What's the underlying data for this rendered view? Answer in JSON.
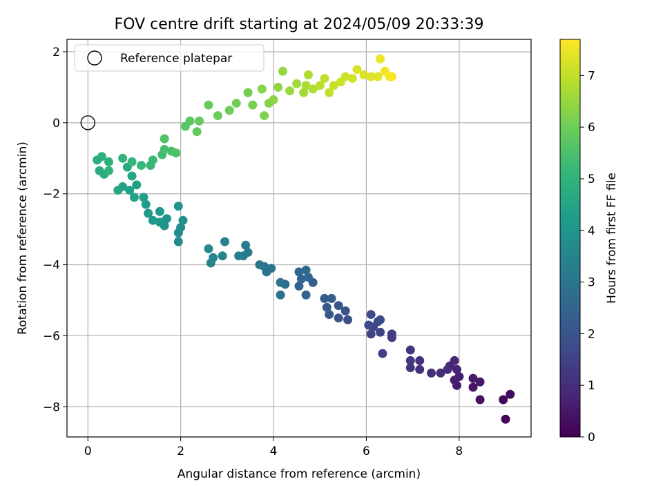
{
  "chart_data": {
    "type": "scatter",
    "title": "FOV centre drift starting at 2024/05/09 20:33:39",
    "xlabel": "Angular distance from reference (arcmin)",
    "ylabel": "Rotation from reference (arcmin)",
    "xlim": [
      -0.45,
      9.55
    ],
    "ylim": [
      -8.85,
      2.35
    ],
    "xticks": [
      0,
      2,
      4,
      6,
      8
    ],
    "xtick_labels": [
      "0",
      "2",
      "4",
      "6",
      "8"
    ],
    "yticks": [
      2,
      0,
      -2,
      -4,
      -6,
      -8
    ],
    "ytick_labels": [
      "2",
      "0",
      "−2",
      "−4",
      "−6",
      "−8"
    ],
    "grid": true,
    "legend": {
      "position": "top-left",
      "entries": [
        "Reference platepar"
      ]
    },
    "reference_point": {
      "x": 0,
      "y": 0,
      "label": "Reference platepar",
      "marker": "open-circle"
    },
    "colorbar": {
      "label": "Hours from first FF file",
      "colormap": "viridis",
      "range": [
        0,
        7.7
      ],
      "ticks": [
        0,
        1,
        2,
        3,
        4,
        5,
        6,
        7
      ],
      "tick_labels": [
        "0",
        "1",
        "2",
        "3",
        "4",
        "5",
        "6",
        "7"
      ]
    },
    "points": [
      {
        "x": 9.0,
        "y": -8.35,
        "h": 0.05
      },
      {
        "x": 8.95,
        "y": -7.8,
        "h": 0.15
      },
      {
        "x": 9.1,
        "y": -7.65,
        "h": 0.25
      },
      {
        "x": 8.45,
        "y": -7.8,
        "h": 0.35
      },
      {
        "x": 8.3,
        "y": -7.45,
        "h": 0.45
      },
      {
        "x": 8.45,
        "y": -7.3,
        "h": 0.5
      },
      {
        "x": 8.3,
        "y": -7.2,
        "h": 0.55
      },
      {
        "x": 7.95,
        "y": -7.4,
        "h": 0.6
      },
      {
        "x": 7.9,
        "y": -7.25,
        "h": 0.65
      },
      {
        "x": 8.0,
        "y": -7.15,
        "h": 0.7
      },
      {
        "x": 7.95,
        "y": -6.95,
        "h": 0.75
      },
      {
        "x": 7.8,
        "y": -6.85,
        "h": 0.8
      },
      {
        "x": 7.9,
        "y": -6.7,
        "h": 0.85
      },
      {
        "x": 7.75,
        "y": -6.95,
        "h": 0.9
      },
      {
        "x": 7.6,
        "y": -7.05,
        "h": 0.95
      },
      {
        "x": 7.4,
        "y": -7.05,
        "h": 1.0
      },
      {
        "x": 7.15,
        "y": -6.7,
        "h": 1.05
      },
      {
        "x": 7.15,
        "y": -6.95,
        "h": 1.1
      },
      {
        "x": 6.95,
        "y": -6.9,
        "h": 1.15
      },
      {
        "x": 6.95,
        "y": -6.7,
        "h": 1.2
      },
      {
        "x": 6.95,
        "y": -6.4,
        "h": 1.25
      },
      {
        "x": 6.55,
        "y": -6.05,
        "h": 1.35
      },
      {
        "x": 6.55,
        "y": -5.95,
        "h": 1.4
      },
      {
        "x": 6.35,
        "y": -6.5,
        "h": 1.45
      },
      {
        "x": 6.3,
        "y": -5.9,
        "h": 1.5
      },
      {
        "x": 6.1,
        "y": -5.95,
        "h": 1.55
      },
      {
        "x": 6.15,
        "y": -5.75,
        "h": 1.6
      },
      {
        "x": 6.05,
        "y": -5.7,
        "h": 1.65
      },
      {
        "x": 6.25,
        "y": -5.6,
        "h": 1.7
      },
      {
        "x": 6.1,
        "y": -5.4,
        "h": 1.75
      },
      {
        "x": 6.3,
        "y": -5.55,
        "h": 1.8
      },
      {
        "x": 5.6,
        "y": -5.55,
        "h": 1.9
      },
      {
        "x": 5.55,
        "y": -5.3,
        "h": 1.95
      },
      {
        "x": 5.4,
        "y": -5.5,
        "h": 2.0
      },
      {
        "x": 5.4,
        "y": -5.15,
        "h": 2.05
      },
      {
        "x": 5.2,
        "y": -5.4,
        "h": 2.1
      },
      {
        "x": 5.15,
        "y": -5.2,
        "h": 2.15
      },
      {
        "x": 5.1,
        "y": -4.95,
        "h": 2.2
      },
      {
        "x": 5.25,
        "y": -4.95,
        "h": 2.25
      },
      {
        "x": 4.85,
        "y": -4.5,
        "h": 2.35
      },
      {
        "x": 4.7,
        "y": -4.85,
        "h": 2.4
      },
      {
        "x": 4.55,
        "y": -4.6,
        "h": 2.45
      },
      {
        "x": 4.6,
        "y": -4.4,
        "h": 2.5
      },
      {
        "x": 4.75,
        "y": -4.35,
        "h": 2.55
      },
      {
        "x": 4.55,
        "y": -4.2,
        "h": 2.6
      },
      {
        "x": 4.7,
        "y": -4.15,
        "h": 2.65
      },
      {
        "x": 4.25,
        "y": -4.55,
        "h": 2.75
      },
      {
        "x": 4.15,
        "y": -4.85,
        "h": 2.8
      },
      {
        "x": 4.15,
        "y": -4.5,
        "h": 2.85
      },
      {
        "x": 3.95,
        "y": -4.1,
        "h": 2.9
      },
      {
        "x": 3.85,
        "y": -4.2,
        "h": 2.95
      },
      {
        "x": 3.8,
        "y": -4.05,
        "h": 3.0
      },
      {
        "x": 3.7,
        "y": -4.0,
        "h": 3.05
      },
      {
        "x": 3.45,
        "y": -3.65,
        "h": 3.15
      },
      {
        "x": 3.4,
        "y": -3.45,
        "h": 3.2
      },
      {
        "x": 3.35,
        "y": -3.75,
        "h": 3.25
      },
      {
        "x": 3.25,
        "y": -3.75,
        "h": 3.3
      },
      {
        "x": 2.95,
        "y": -3.35,
        "h": 3.4
      },
      {
        "x": 2.9,
        "y": -3.75,
        "h": 3.45
      },
      {
        "x": 2.7,
        "y": -3.8,
        "h": 3.5
      },
      {
        "x": 2.65,
        "y": -3.95,
        "h": 3.55
      },
      {
        "x": 2.6,
        "y": -3.55,
        "h": 3.6
      },
      {
        "x": 1.95,
        "y": -3.35,
        "h": 3.7
      },
      {
        "x": 1.95,
        "y": -3.1,
        "h": 3.75
      },
      {
        "x": 2.0,
        "y": -2.95,
        "h": 3.8
      },
      {
        "x": 2.05,
        "y": -2.75,
        "h": 3.85
      },
      {
        "x": 1.95,
        "y": -2.35,
        "h": 3.9
      },
      {
        "x": 1.65,
        "y": -2.9,
        "h": 3.95
      },
      {
        "x": 1.7,
        "y": -2.7,
        "h": 4.0
      },
      {
        "x": 1.55,
        "y": -2.8,
        "h": 4.05
      },
      {
        "x": 1.55,
        "y": -2.5,
        "h": 4.1
      },
      {
        "x": 1.4,
        "y": -2.75,
        "h": 4.15
      },
      {
        "x": 1.3,
        "y": -2.55,
        "h": 4.2
      },
      {
        "x": 1.25,
        "y": -2.3,
        "h": 4.25
      },
      {
        "x": 1.2,
        "y": -2.1,
        "h": 4.3
      },
      {
        "x": 1.05,
        "y": -1.75,
        "h": 4.35
      },
      {
        "x": 1.0,
        "y": -2.1,
        "h": 4.4
      },
      {
        "x": 0.9,
        "y": -1.9,
        "h": 4.45
      },
      {
        "x": 0.75,
        "y": -1.8,
        "h": 4.5
      },
      {
        "x": 0.65,
        "y": -1.9,
        "h": 4.55
      },
      {
        "x": 0.95,
        "y": -1.5,
        "h": 4.6
      },
      {
        "x": 0.85,
        "y": -1.25,
        "h": 4.65
      },
      {
        "x": 0.35,
        "y": -1.45,
        "h": 4.7
      },
      {
        "x": 0.25,
        "y": -1.35,
        "h": 4.75
      },
      {
        "x": 0.2,
        "y": -1.05,
        "h": 4.8
      },
      {
        "x": 0.3,
        "y": -0.95,
        "h": 4.85
      },
      {
        "x": 0.45,
        "y": -1.1,
        "h": 4.9
      },
      {
        "x": 0.45,
        "y": -1.35,
        "h": 4.95
      },
      {
        "x": 0.75,
        "y": -1.0,
        "h": 5.0
      },
      {
        "x": 0.95,
        "y": -1.1,
        "h": 5.05
      },
      {
        "x": 1.15,
        "y": -1.2,
        "h": 5.1
      },
      {
        "x": 1.35,
        "y": -1.2,
        "h": 5.15
      },
      {
        "x": 1.4,
        "y": -1.05,
        "h": 5.2
      },
      {
        "x": 1.6,
        "y": -0.9,
        "h": 5.3
      },
      {
        "x": 1.65,
        "y": -0.75,
        "h": 5.4
      },
      {
        "x": 1.8,
        "y": -0.8,
        "h": 5.45
      },
      {
        "x": 1.9,
        "y": -0.85,
        "h": 5.5
      },
      {
        "x": 1.65,
        "y": -0.45,
        "h": 5.55
      },
      {
        "x": 2.1,
        "y": -0.1,
        "h": 5.7
      },
      {
        "x": 2.2,
        "y": 0.05,
        "h": 5.75
      },
      {
        "x": 2.35,
        "y": -0.25,
        "h": 5.8
      },
      {
        "x": 2.4,
        "y": 0.05,
        "h": 5.85
      },
      {
        "x": 2.6,
        "y": 0.5,
        "h": 5.9
      },
      {
        "x": 2.8,
        "y": 0.2,
        "h": 5.95
      },
      {
        "x": 3.05,
        "y": 0.35,
        "h": 6.0
      },
      {
        "x": 3.2,
        "y": 0.55,
        "h": 6.05
      },
      {
        "x": 3.45,
        "y": 0.85,
        "h": 6.1
      },
      {
        "x": 3.55,
        "y": 0.5,
        "h": 6.15
      },
      {
        "x": 3.8,
        "y": 0.2,
        "h": 6.2
      },
      {
        "x": 3.9,
        "y": 0.55,
        "h": 6.25
      },
      {
        "x": 3.75,
        "y": 0.95,
        "h": 6.3
      },
      {
        "x": 4.0,
        "y": 0.65,
        "h": 6.35
      },
      {
        "x": 4.1,
        "y": 1.0,
        "h": 6.4
      },
      {
        "x": 4.2,
        "y": 1.45,
        "h": 6.5
      },
      {
        "x": 4.35,
        "y": 0.9,
        "h": 6.55
      },
      {
        "x": 4.5,
        "y": 1.1,
        "h": 6.6
      },
      {
        "x": 4.65,
        "y": 0.85,
        "h": 6.65
      },
      {
        "x": 4.7,
        "y": 1.05,
        "h": 6.7
      },
      {
        "x": 4.75,
        "y": 1.35,
        "h": 6.75
      },
      {
        "x": 4.85,
        "y": 0.95,
        "h": 6.8
      },
      {
        "x": 5.0,
        "y": 1.05,
        "h": 6.9
      },
      {
        "x": 5.1,
        "y": 1.25,
        "h": 6.95
      },
      {
        "x": 5.2,
        "y": 0.85,
        "h": 7.0
      },
      {
        "x": 5.3,
        "y": 1.05,
        "h": 7.05
      },
      {
        "x": 5.45,
        "y": 1.15,
        "h": 7.1
      },
      {
        "x": 5.55,
        "y": 1.3,
        "h": 7.15
      },
      {
        "x": 5.7,
        "y": 1.25,
        "h": 7.2
      },
      {
        "x": 5.8,
        "y": 1.5,
        "h": 7.25
      },
      {
        "x": 5.95,
        "y": 1.35,
        "h": 7.3
      },
      {
        "x": 6.1,
        "y": 1.3,
        "h": 7.35
      },
      {
        "x": 6.25,
        "y": 1.3,
        "h": 7.4
      },
      {
        "x": 6.3,
        "y": 1.8,
        "h": 7.5
      },
      {
        "x": 6.4,
        "y": 1.45,
        "h": 7.55
      },
      {
        "x": 6.5,
        "y": 1.3,
        "h": 7.6
      },
      {
        "x": 6.55,
        "y": 1.3,
        "h": 7.65
      }
    ]
  }
}
